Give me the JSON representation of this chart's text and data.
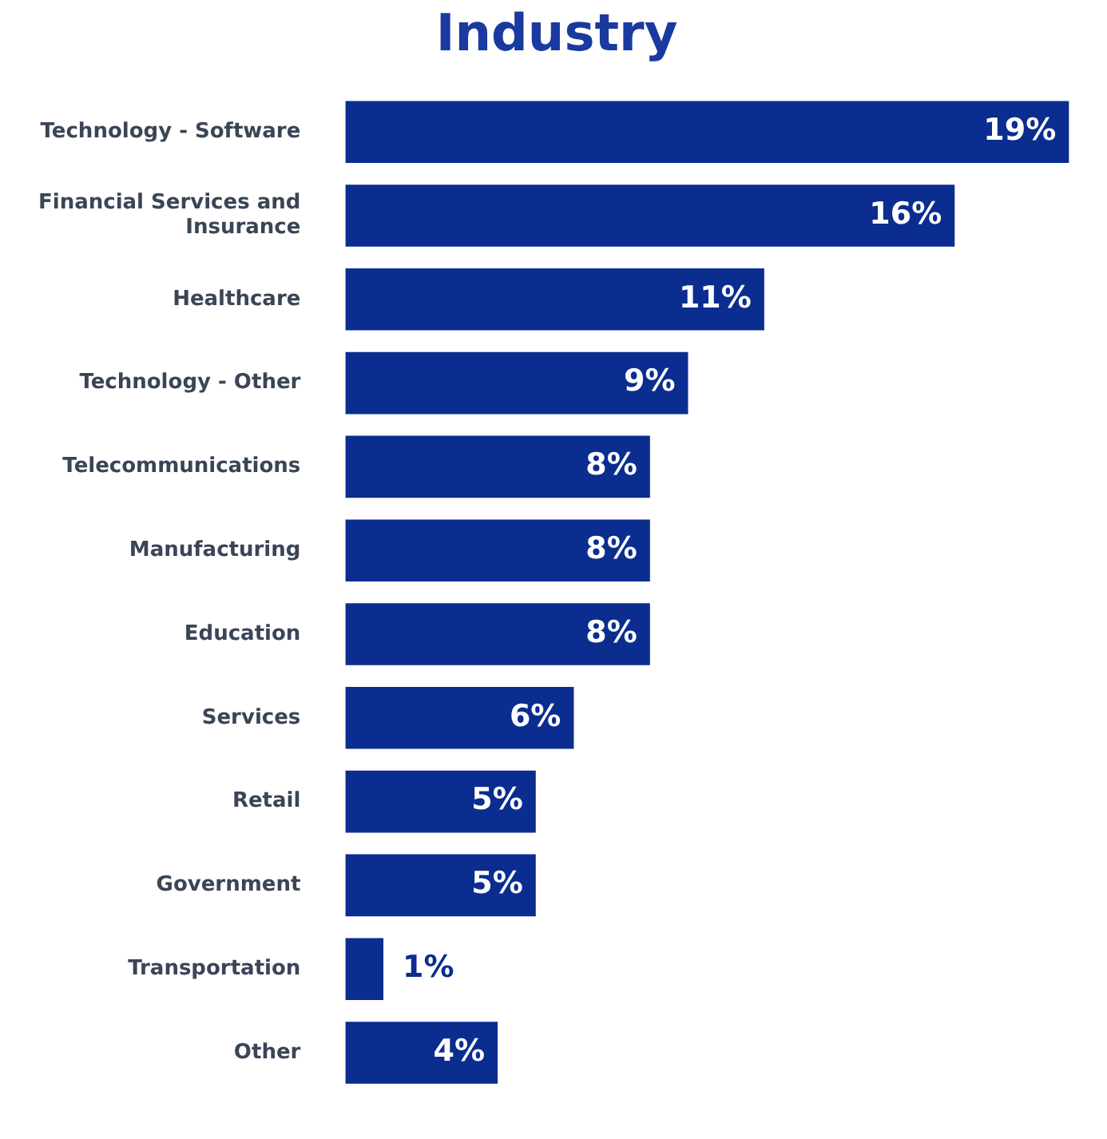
{
  "chart_data": {
    "type": "bar",
    "orientation": "horizontal",
    "title": "Industry",
    "categories": [
      "Technology - Software",
      "Financial Services and Insurance",
      "Healthcare",
      "Technology - Other",
      "Telecommunications",
      "Manufacturing",
      "Education",
      "Services",
      "Retail",
      "Government",
      "Transportation",
      "Other"
    ],
    "values": [
      19,
      16,
      11,
      9,
      8,
      8,
      8,
      6,
      5,
      5,
      1,
      4
    ],
    "value_labels": [
      "19%",
      "16%",
      "11%",
      "9%",
      "8%",
      "8%",
      "8%",
      "6%",
      "5%",
      "5%",
      "1%",
      "4%"
    ],
    "color": "#0a2d8f",
    "grid": false,
    "legend": false,
    "tick_labels": "y"
  }
}
